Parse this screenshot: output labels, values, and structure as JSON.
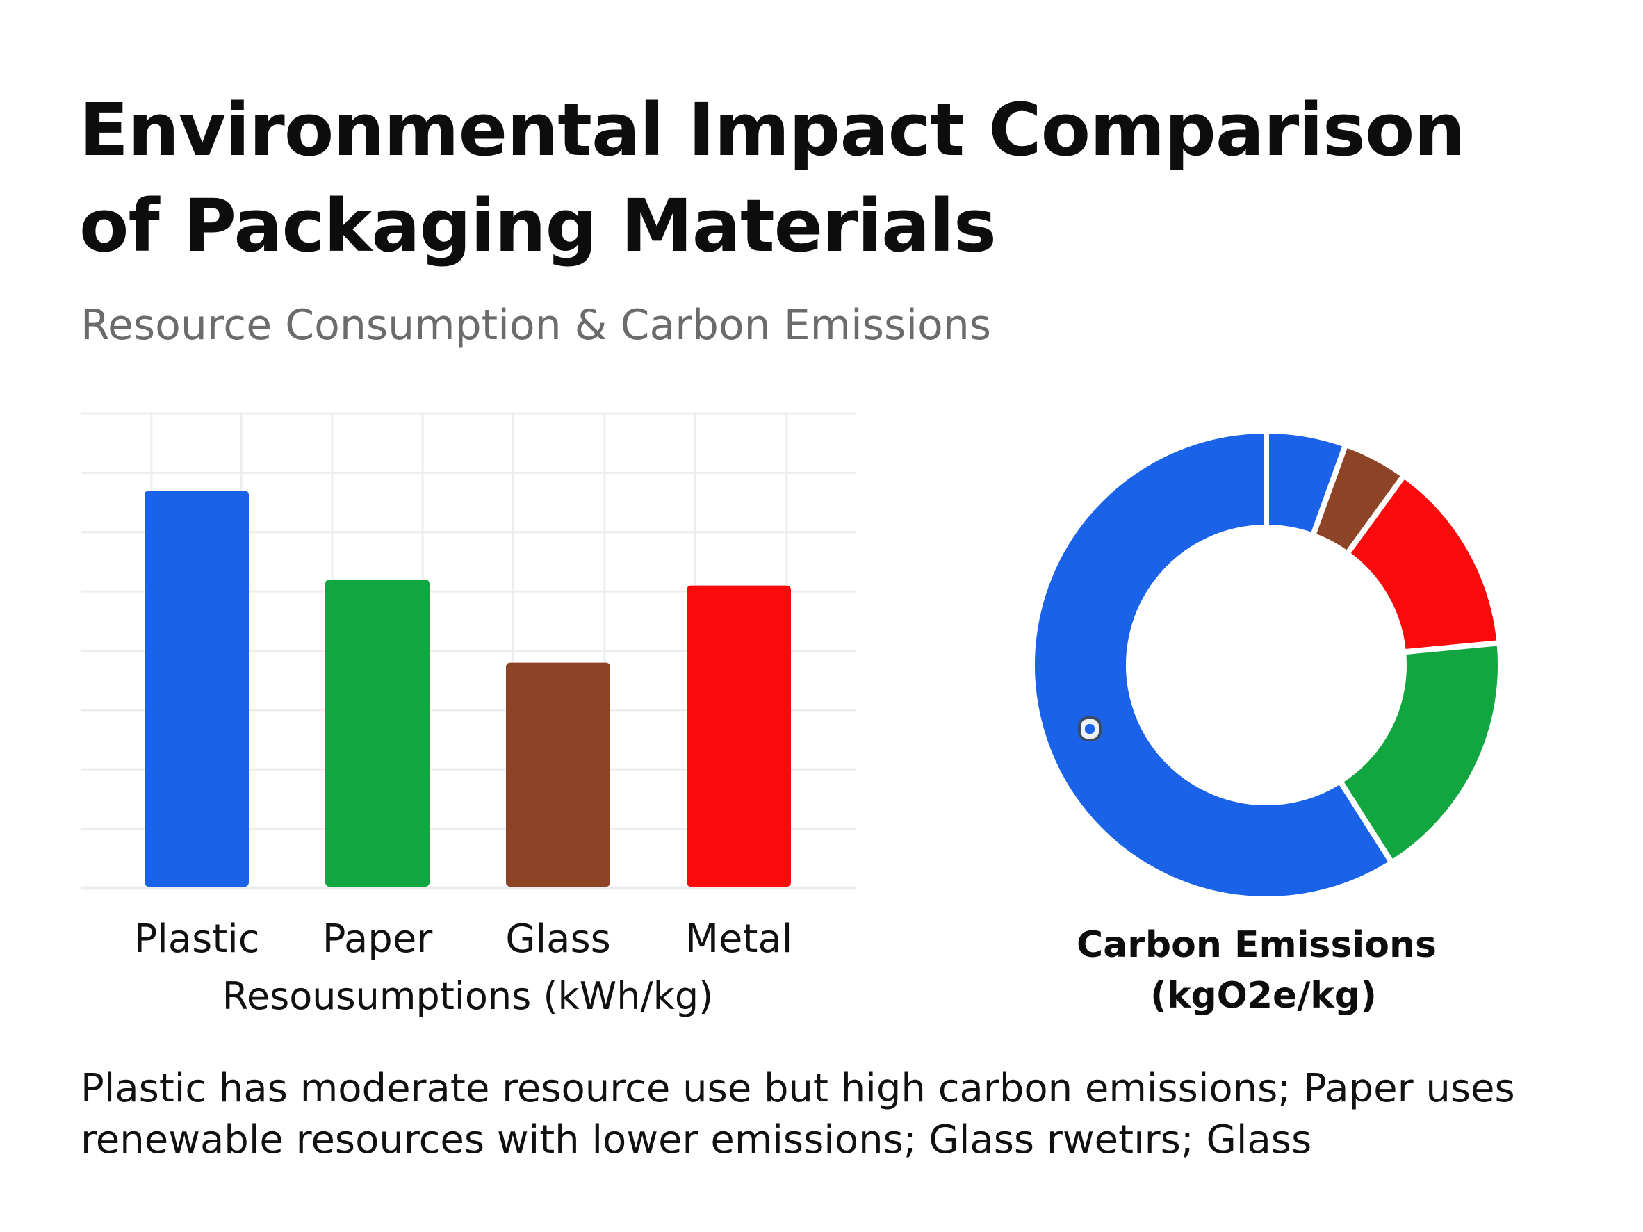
{
  "title": "Environmental Impact Comparison of Packaging Materials",
  "subtitle": "Resource Consumption & Carbon Emissions",
  "caption": "Plastic has moderate resource use but high carbon emissions; Paper uses renewable resources with lower emissions; Glass rwetırs; Glass",
  "colors": {
    "plastic": "#1a63e8",
    "paper": "#12a640",
    "glass": "#8c4326",
    "metal": "#fa0a0a",
    "grid": "#ededed"
  },
  "chart_data": [
    {
      "type": "bar",
      "categories": [
        "Plastic",
        "Paper",
        "Glass",
        "Metal"
      ],
      "values": [
        6.7,
        5.2,
        3.8,
        5.1
      ],
      "ylim": [
        0,
        8
      ],
      "xlabel": "Resousumptions (kWh/kg)",
      "ylabel": "",
      "grid": true,
      "colors": [
        "#1a63e8",
        "#12a640",
        "#8c4326",
        "#fa0a0a"
      ]
    },
    {
      "type": "pie",
      "style": "donut",
      "title": "Carbon Emissions (kgO2e/kg)",
      "title_lines": [
        "Carbon Emissions",
        "(kgO2e/kg)"
      ],
      "slices": [
        {
          "value": 5.5,
          "color": "#1a63e8"
        },
        {
          "value": 4.5,
          "color": "#8c4326"
        },
        {
          "value": 13.5,
          "color": "#fa0a0a"
        },
        {
          "value": 17.5,
          "color": "#12a640"
        },
        {
          "value": 59.0,
          "color": "#1a63e8"
        }
      ]
    }
  ]
}
